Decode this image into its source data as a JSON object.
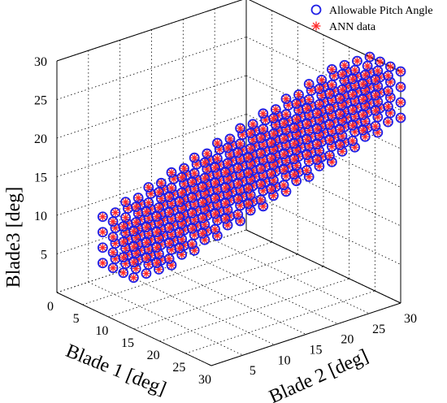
{
  "chart_data": {
    "type": "scatter3d",
    "title": "",
    "xlabel": "Blade 1 [deg]",
    "ylabel": "Blade 2 [deg]",
    "zlabel": "Blade3 [deg]",
    "xlim": [
      0,
      30
    ],
    "ylim": [
      0,
      30
    ],
    "zlim": [
      0,
      30
    ],
    "x_ticks": [
      0,
      5,
      10,
      15,
      20,
      25,
      30
    ],
    "y_ticks": [
      5,
      10,
      15,
      20,
      25,
      30
    ],
    "z_ticks": [
      5,
      10,
      15,
      20,
      25,
      30
    ],
    "grid": true,
    "legend_position": "top-right",
    "legend": [
      {
        "label": "Allowable Pitch Angle",
        "marker": "circle",
        "color": "#1f1fe6"
      },
      {
        "label": "ANN data",
        "marker": "asterisk",
        "color": "#ff2a2a"
      }
    ],
    "series": [
      {
        "name": "Allowable Pitch Angle",
        "description": "Grid of blade angle combinations where the three blade pitch angles lie within about 6 degrees of each other (points concentrated along the diagonal)",
        "x": [
          4,
          6,
          8,
          10,
          12,
          14,
          16,
          18,
          20,
          22,
          24,
          26,
          28,
          30
        ],
        "y_rule": "|x-y|<=6",
        "z_rule": "|x-z|<=6 and |y-z|<=6"
      },
      {
        "name": "ANN data",
        "description": "Same grid as allowable pitch angles"
      }
    ]
  }
}
